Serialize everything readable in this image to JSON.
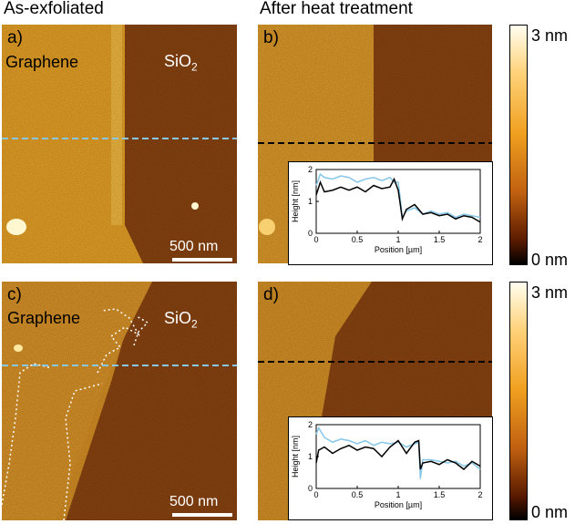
{
  "headers": {
    "left": "As-exfoliated",
    "right": "After heat treatment"
  },
  "panels": {
    "a": {
      "label": "a)",
      "material_left": "Graphene",
      "material_right": "SiO",
      "material_right_sub": "2",
      "scalebar": "500 nm"
    },
    "b": {
      "label": "b)"
    },
    "c": {
      "label": "c)",
      "material_left": "Graphene",
      "material_right": "SiO",
      "material_right_sub": "2",
      "scalebar": "500 nm"
    },
    "d": {
      "label": "d)"
    }
  },
  "colorbar": {
    "top_label": "3 nm",
    "bottom_label": "0 nm"
  },
  "colors": {
    "graphene": "#e7a126",
    "sio2": "#8a4410",
    "blue_profile": "#87c7e8",
    "black_profile": "#000000"
  },
  "chart_data": [
    {
      "type": "line",
      "panel": "b",
      "xlabel": "Position [µm]",
      "ylabel": "Height [nm]",
      "xlim": [
        0,
        2
      ],
      "ylim": [
        0,
        2
      ],
      "xticks": [
        "0",
        "0.5",
        "1",
        "1.5",
        "2"
      ],
      "yticks": [
        "0",
        "1",
        "2"
      ],
      "series": [
        {
          "name": "as-exfoliated",
          "color": "#87c7e8",
          "x": [
            0,
            0.05,
            0.1,
            0.2,
            0.3,
            0.4,
            0.5,
            0.6,
            0.7,
            0.8,
            0.9,
            0.95,
            1.0,
            1.02,
            1.05,
            1.1,
            1.2,
            1.3,
            1.4,
            1.5,
            1.6,
            1.7,
            1.8,
            1.9,
            2.0
          ],
          "y": [
            1.5,
            1.85,
            1.75,
            1.7,
            1.8,
            1.75,
            1.6,
            1.7,
            1.75,
            1.65,
            1.75,
            1.6,
            1.6,
            1.2,
            0.5,
            0.7,
            0.8,
            0.6,
            0.7,
            0.6,
            0.65,
            0.5,
            0.6,
            0.55,
            0.5
          ]
        },
        {
          "name": "after heat treatment",
          "color": "#000000",
          "x": [
            0,
            0.05,
            0.1,
            0.2,
            0.3,
            0.4,
            0.5,
            0.6,
            0.7,
            0.8,
            0.9,
            0.95,
            1.0,
            1.02,
            1.05,
            1.1,
            1.2,
            1.3,
            1.4,
            1.5,
            1.6,
            1.7,
            1.8,
            1.9,
            2.0
          ],
          "y": [
            1.2,
            1.6,
            1.3,
            1.35,
            1.45,
            1.35,
            1.45,
            1.3,
            1.5,
            1.4,
            1.45,
            1.7,
            1.35,
            1.0,
            0.45,
            0.75,
            0.9,
            0.6,
            0.65,
            0.55,
            0.6,
            0.45,
            0.55,
            0.5,
            0.35
          ]
        }
      ]
    },
    {
      "type": "line",
      "panel": "d",
      "xlabel": "Position [µm]",
      "ylabel": "Height [nm]",
      "xlim": [
        0,
        2
      ],
      "ylim": [
        0,
        2
      ],
      "xticks": [
        "0",
        "0.5",
        "1",
        "1.5",
        "2"
      ],
      "yticks": [
        "0",
        "1",
        "2"
      ],
      "series": [
        {
          "name": "as-exfoliated",
          "color": "#87c7e8",
          "x": [
            0,
            0.03,
            0.1,
            0.2,
            0.3,
            0.4,
            0.5,
            0.6,
            0.7,
            0.8,
            0.9,
            1.0,
            1.1,
            1.2,
            1.25,
            1.27,
            1.3,
            1.4,
            1.5,
            1.6,
            1.7,
            1.8,
            1.9,
            2.0
          ],
          "y": [
            1.7,
            1.9,
            1.6,
            1.45,
            1.55,
            1.5,
            1.4,
            1.5,
            1.35,
            1.45,
            1.4,
            1.45,
            1.3,
            1.4,
            1.45,
            0.3,
            0.9,
            0.9,
            0.85,
            0.8,
            0.85,
            0.7,
            0.8,
            0.6
          ]
        },
        {
          "name": "after heat treatment",
          "color": "#000000",
          "x": [
            0,
            0.03,
            0.1,
            0.2,
            0.3,
            0.4,
            0.5,
            0.6,
            0.7,
            0.8,
            0.9,
            1.0,
            1.1,
            1.2,
            1.25,
            1.27,
            1.3,
            1.4,
            1.5,
            1.6,
            1.7,
            1.8,
            1.9,
            2.0
          ],
          "y": [
            0.8,
            1.2,
            1.3,
            1.1,
            1.25,
            1.35,
            1.2,
            1.3,
            1.25,
            1.0,
            1.3,
            1.5,
            1.1,
            1.45,
            1.5,
            0.6,
            0.8,
            0.85,
            0.75,
            0.9,
            0.8,
            0.6,
            0.85,
            0.7
          ]
        }
      ]
    }
  ]
}
